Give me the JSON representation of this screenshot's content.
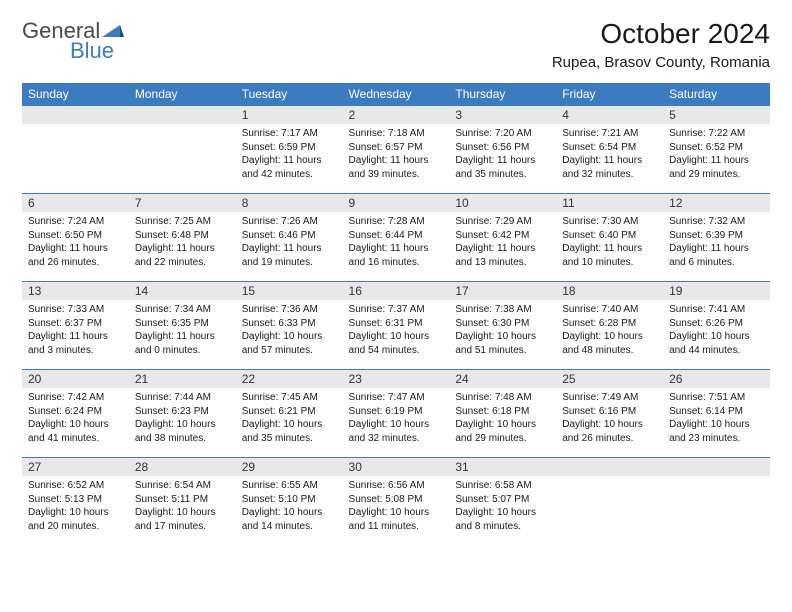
{
  "logo": {
    "text1": "General",
    "text2": "Blue"
  },
  "title": "October 2024",
  "location": "Rupea, Brasov County, Romania",
  "weekdays": [
    "Sunday",
    "Monday",
    "Tuesday",
    "Wednesday",
    "Thursday",
    "Friday",
    "Saturday"
  ],
  "colors": {
    "header_bg": "#3b7bbf",
    "header_text": "#ffffff",
    "daynum_bg": "#e8e8e8",
    "border": "#3b7bbf",
    "text": "#1a1a1a",
    "background": "#ffffff"
  },
  "typography": {
    "title_fontsize": 28,
    "location_fontsize": 15,
    "weekday_fontsize": 12,
    "daynum_fontsize": 12,
    "body_fontsize": 10
  },
  "grid": [
    [
      {
        "blank": true
      },
      {
        "blank": true
      },
      {
        "n": "1",
        "sunrise": "Sunrise: 7:17 AM",
        "sunset": "Sunset: 6:59 PM",
        "day1": "Daylight: 11 hours",
        "day2": "and 42 minutes."
      },
      {
        "n": "2",
        "sunrise": "Sunrise: 7:18 AM",
        "sunset": "Sunset: 6:57 PM",
        "day1": "Daylight: 11 hours",
        "day2": "and 39 minutes."
      },
      {
        "n": "3",
        "sunrise": "Sunrise: 7:20 AM",
        "sunset": "Sunset: 6:56 PM",
        "day1": "Daylight: 11 hours",
        "day2": "and 35 minutes."
      },
      {
        "n": "4",
        "sunrise": "Sunrise: 7:21 AM",
        "sunset": "Sunset: 6:54 PM",
        "day1": "Daylight: 11 hours",
        "day2": "and 32 minutes."
      },
      {
        "n": "5",
        "sunrise": "Sunrise: 7:22 AM",
        "sunset": "Sunset: 6:52 PM",
        "day1": "Daylight: 11 hours",
        "day2": "and 29 minutes."
      }
    ],
    [
      {
        "n": "6",
        "sunrise": "Sunrise: 7:24 AM",
        "sunset": "Sunset: 6:50 PM",
        "day1": "Daylight: 11 hours",
        "day2": "and 26 minutes."
      },
      {
        "n": "7",
        "sunrise": "Sunrise: 7:25 AM",
        "sunset": "Sunset: 6:48 PM",
        "day1": "Daylight: 11 hours",
        "day2": "and 22 minutes."
      },
      {
        "n": "8",
        "sunrise": "Sunrise: 7:26 AM",
        "sunset": "Sunset: 6:46 PM",
        "day1": "Daylight: 11 hours",
        "day2": "and 19 minutes."
      },
      {
        "n": "9",
        "sunrise": "Sunrise: 7:28 AM",
        "sunset": "Sunset: 6:44 PM",
        "day1": "Daylight: 11 hours",
        "day2": "and 16 minutes."
      },
      {
        "n": "10",
        "sunrise": "Sunrise: 7:29 AM",
        "sunset": "Sunset: 6:42 PM",
        "day1": "Daylight: 11 hours",
        "day2": "and 13 minutes."
      },
      {
        "n": "11",
        "sunrise": "Sunrise: 7:30 AM",
        "sunset": "Sunset: 6:40 PM",
        "day1": "Daylight: 11 hours",
        "day2": "and 10 minutes."
      },
      {
        "n": "12",
        "sunrise": "Sunrise: 7:32 AM",
        "sunset": "Sunset: 6:39 PM",
        "day1": "Daylight: 11 hours",
        "day2": "and 6 minutes."
      }
    ],
    [
      {
        "n": "13",
        "sunrise": "Sunrise: 7:33 AM",
        "sunset": "Sunset: 6:37 PM",
        "day1": "Daylight: 11 hours",
        "day2": "and 3 minutes."
      },
      {
        "n": "14",
        "sunrise": "Sunrise: 7:34 AM",
        "sunset": "Sunset: 6:35 PM",
        "day1": "Daylight: 11 hours",
        "day2": "and 0 minutes."
      },
      {
        "n": "15",
        "sunrise": "Sunrise: 7:36 AM",
        "sunset": "Sunset: 6:33 PM",
        "day1": "Daylight: 10 hours",
        "day2": "and 57 minutes."
      },
      {
        "n": "16",
        "sunrise": "Sunrise: 7:37 AM",
        "sunset": "Sunset: 6:31 PM",
        "day1": "Daylight: 10 hours",
        "day2": "and 54 minutes."
      },
      {
        "n": "17",
        "sunrise": "Sunrise: 7:38 AM",
        "sunset": "Sunset: 6:30 PM",
        "day1": "Daylight: 10 hours",
        "day2": "and 51 minutes."
      },
      {
        "n": "18",
        "sunrise": "Sunrise: 7:40 AM",
        "sunset": "Sunset: 6:28 PM",
        "day1": "Daylight: 10 hours",
        "day2": "and 48 minutes."
      },
      {
        "n": "19",
        "sunrise": "Sunrise: 7:41 AM",
        "sunset": "Sunset: 6:26 PM",
        "day1": "Daylight: 10 hours",
        "day2": "and 44 minutes."
      }
    ],
    [
      {
        "n": "20",
        "sunrise": "Sunrise: 7:42 AM",
        "sunset": "Sunset: 6:24 PM",
        "day1": "Daylight: 10 hours",
        "day2": "and 41 minutes."
      },
      {
        "n": "21",
        "sunrise": "Sunrise: 7:44 AM",
        "sunset": "Sunset: 6:23 PM",
        "day1": "Daylight: 10 hours",
        "day2": "and 38 minutes."
      },
      {
        "n": "22",
        "sunrise": "Sunrise: 7:45 AM",
        "sunset": "Sunset: 6:21 PM",
        "day1": "Daylight: 10 hours",
        "day2": "and 35 minutes."
      },
      {
        "n": "23",
        "sunrise": "Sunrise: 7:47 AM",
        "sunset": "Sunset: 6:19 PM",
        "day1": "Daylight: 10 hours",
        "day2": "and 32 minutes."
      },
      {
        "n": "24",
        "sunrise": "Sunrise: 7:48 AM",
        "sunset": "Sunset: 6:18 PM",
        "day1": "Daylight: 10 hours",
        "day2": "and 29 minutes."
      },
      {
        "n": "25",
        "sunrise": "Sunrise: 7:49 AM",
        "sunset": "Sunset: 6:16 PM",
        "day1": "Daylight: 10 hours",
        "day2": "and 26 minutes."
      },
      {
        "n": "26",
        "sunrise": "Sunrise: 7:51 AM",
        "sunset": "Sunset: 6:14 PM",
        "day1": "Daylight: 10 hours",
        "day2": "and 23 minutes."
      }
    ],
    [
      {
        "n": "27",
        "sunrise": "Sunrise: 6:52 AM",
        "sunset": "Sunset: 5:13 PM",
        "day1": "Daylight: 10 hours",
        "day2": "and 20 minutes."
      },
      {
        "n": "28",
        "sunrise": "Sunrise: 6:54 AM",
        "sunset": "Sunset: 5:11 PM",
        "day1": "Daylight: 10 hours",
        "day2": "and 17 minutes."
      },
      {
        "n": "29",
        "sunrise": "Sunrise: 6:55 AM",
        "sunset": "Sunset: 5:10 PM",
        "day1": "Daylight: 10 hours",
        "day2": "and 14 minutes."
      },
      {
        "n": "30",
        "sunrise": "Sunrise: 6:56 AM",
        "sunset": "Sunset: 5:08 PM",
        "day1": "Daylight: 10 hours",
        "day2": "and 11 minutes."
      },
      {
        "n": "31",
        "sunrise": "Sunrise: 6:58 AM",
        "sunset": "Sunset: 5:07 PM",
        "day1": "Daylight: 10 hours",
        "day2": "and 8 minutes."
      },
      {
        "blank": true
      },
      {
        "blank": true
      }
    ]
  ]
}
